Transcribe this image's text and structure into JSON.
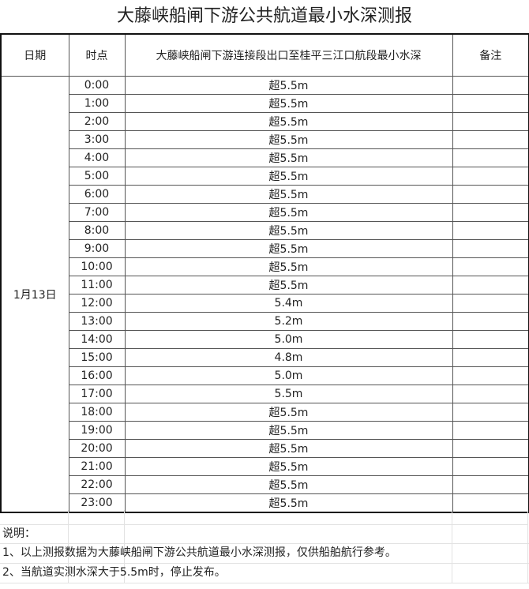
{
  "title": "大藤峡船闸下游公共航道最小水深测报",
  "headers": {
    "date": "日期",
    "time": "时点",
    "depth": "大藤峡船闸下游连接段出口至桂平三江口航段最小水深",
    "remark": "备注"
  },
  "date": "1月13日",
  "rows": [
    {
      "time": "0:00",
      "depth": "超5.5m"
    },
    {
      "time": "1:00",
      "depth": "超5.5m"
    },
    {
      "time": "2:00",
      "depth": "超5.5m"
    },
    {
      "time": "3:00",
      "depth": "超5.5m"
    },
    {
      "time": "4:00",
      "depth": "超5.5m"
    },
    {
      "time": "5:00",
      "depth": "超5.5m"
    },
    {
      "time": "6:00",
      "depth": "超5.5m"
    },
    {
      "time": "7:00",
      "depth": "超5.5m"
    },
    {
      "time": "8:00",
      "depth": "超5.5m"
    },
    {
      "time": "9:00",
      "depth": "超5.5m"
    },
    {
      "time": "10:00",
      "depth": "超5.5m"
    },
    {
      "time": "11:00",
      "depth": "超5.5m"
    },
    {
      "time": "12:00",
      "depth": "5.4m"
    },
    {
      "time": "13:00",
      "depth": "5.2m"
    },
    {
      "time": "14:00",
      "depth": "5.0m"
    },
    {
      "time": "15:00",
      "depth": "4.8m"
    },
    {
      "time": "16:00",
      "depth": "5.0m"
    },
    {
      "time": "17:00",
      "depth": "5.5m"
    },
    {
      "time": "18:00",
      "depth": "超5.5m"
    },
    {
      "time": "19:00",
      "depth": "超5.5m"
    },
    {
      "time": "20:00",
      "depth": "超5.5m"
    },
    {
      "time": "21:00",
      "depth": "超5.5m"
    },
    {
      "time": "22:00",
      "depth": "超5.5m"
    },
    {
      "time": "23:00",
      "depth": "超5.5m"
    }
  ],
  "notes": {
    "heading": "说明：",
    "line1": "1、以上测报数据为大藤峡船闸下游公共航道最小水深测报，仅供船舶航行参考。",
    "line2": "2、当航道实测水深大于5.5m时，停止发布。"
  }
}
